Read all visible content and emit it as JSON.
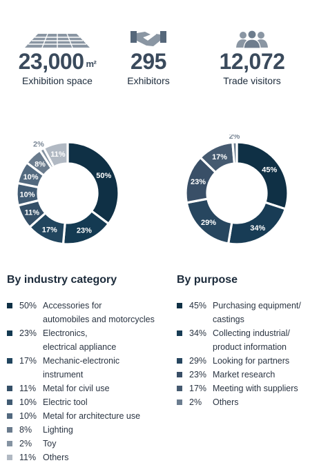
{
  "stats": [
    {
      "value": "23,000",
      "unit": "m²",
      "label": "Exhibition space",
      "icon": "floor-grid-icon"
    },
    {
      "value": "295",
      "unit": "",
      "label": "Exhibitors",
      "icon": "handshake-icon"
    },
    {
      "value": "12,072",
      "unit": "",
      "label": "Trade visitors",
      "icon": "visitors-group-icon"
    }
  ],
  "chart_data": [
    {
      "type": "pie",
      "title": "By industry category",
      "unit": "%",
      "categories": [
        "Accessories for automobiles and motorcycles",
        "Electronics, electrical appliance",
        "Mechanic-electronic instrument",
        "Metal for civil use",
        "Electric tool",
        "Metal for architecture use",
        "Lighting",
        "Toy",
        "Others"
      ],
      "legend_lines": [
        [
          "Accessories for",
          "automobiles and motorcycles"
        ],
        [
          "Electronics,",
          "electrical appliance"
        ],
        [
          "Mechanic-electronic",
          "instrument"
        ],
        [
          "Metal for civil use"
        ],
        [
          "Electric tool"
        ],
        [
          "Metal for architecture use"
        ],
        [
          "Lighting"
        ],
        [
          "Toy"
        ],
        [
          "Others"
        ]
      ],
      "values": [
        50,
        23,
        17,
        11,
        10,
        10,
        8,
        2,
        11
      ],
      "colors": [
        "#0f3045",
        "#143a52",
        "#21455e",
        "#344f67",
        "#415b73",
        "#52697f",
        "#6a7b8d",
        "#8593a2",
        "#b1b9c3"
      ],
      "legend_position": "bottom"
    },
    {
      "type": "pie",
      "title": "By purpose",
      "unit": "%",
      "categories": [
        "Purchasing equipment/ castings",
        "Collecting industrial/ product information",
        "Looking for partners",
        "Market research",
        "Meeting with suppliers",
        "Others"
      ],
      "legend_lines": [
        [
          "Purchasing equipment/",
          "castings"
        ],
        [
          "Collecting industrial/",
          "product information"
        ],
        [
          "Looking for partners"
        ],
        [
          "Market research"
        ],
        [
          "Meeting with suppliers"
        ],
        [
          "Others"
        ]
      ],
      "values": [
        45,
        34,
        29,
        23,
        17,
        2
      ],
      "colors": [
        "#0f3045",
        "#183c55",
        "#27465f",
        "#394f67",
        "#455a70",
        "#6b7d8f"
      ],
      "legend_position": "bottom"
    }
  ]
}
